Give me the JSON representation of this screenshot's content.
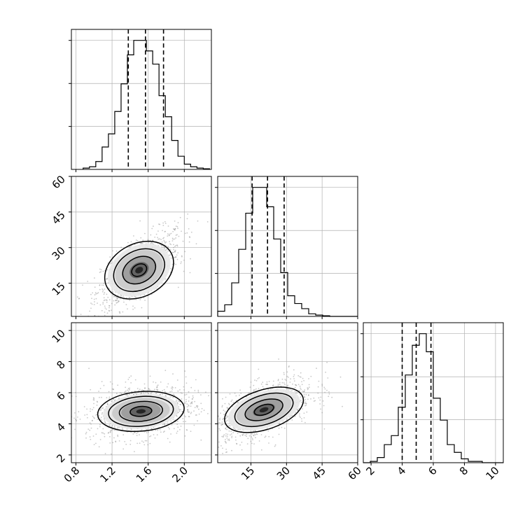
{
  "chart_data": {
    "type": "corner",
    "title": "",
    "params": [
      {
        "name": "",
        "range": [
          0.75,
          2.3
        ],
        "ticks": [
          0.8,
          1.2,
          1.6,
          2.0
        ],
        "tick_labels": [
          "0.8",
          "1.2",
          "1.6",
          "2.0"
        ],
        "quantiles": [
          1.38,
          1.57,
          1.77
        ]
      },
      {
        "name": "",
        "range": [
          1,
          60
        ],
        "ticks": [
          15,
          30,
          45,
          60
        ],
        "tick_labels": [
          "15",
          "30",
          "45",
          "60"
        ],
        "quantiles": [
          15.5,
          22.0,
          29.0
        ]
      },
      {
        "name": "",
        "range": [
          1.5,
          10.5
        ],
        "ticks": [
          2,
          4,
          6,
          8,
          10
        ],
        "tick_labels": [
          "2",
          "4",
          "6",
          "8",
          "10"
        ],
        "quantiles": [
          4.0,
          4.9,
          5.85
        ]
      }
    ],
    "marginals": [
      {
        "param": 0,
        "bin_edges": [
          0.88,
          0.95,
          1.02,
          1.09,
          1.16,
          1.23,
          1.3,
          1.37,
          1.44,
          1.51,
          1.58,
          1.65,
          1.72,
          1.79,
          1.86,
          1.93,
          2.0,
          2.07,
          2.14,
          2.21,
          2.28
        ],
        "counts": [
          1,
          2,
          6,
          17,
          27,
          44,
          65,
          87,
          98,
          98,
          90,
          80,
          56,
          40,
          22,
          10,
          4,
          2,
          1,
          0.5
        ]
      },
      {
        "param": 1,
        "bin_edges": [
          1,
          3.95,
          6.9,
          9.85,
          12.8,
          15.75,
          18.7,
          21.65,
          24.6,
          27.55,
          30.5,
          33.45,
          36.4,
          39.35,
          42.3,
          45.25,
          48.2,
          51.15,
          54.1,
          57.05,
          60
        ],
        "counts": [
          4,
          9,
          26,
          52,
          80,
          100,
          100,
          85,
          60,
          34,
          16,
          10,
          6,
          2,
          1,
          0.5,
          0,
          0,
          0,
          0
        ]
      },
      {
        "param": 2,
        "bin_edges": [
          1.5,
          1.95,
          2.4,
          2.85,
          3.3,
          3.75,
          4.2,
          4.65,
          5.1,
          5.55,
          6.0,
          6.45,
          6.9,
          7.35,
          7.8,
          8.25,
          8.7,
          9.15,
          9.6,
          10.05,
          10.5
        ],
        "counts": [
          0,
          1,
          4,
          14,
          21,
          43,
          68,
          91,
          100,
          86,
          50,
          33,
          14,
          8,
          3,
          1,
          1,
          0,
          0,
          0
        ]
      }
    ],
    "pairs": [
      {
        "x_param": 0,
        "y_param": 1,
        "center": [
          1.5,
          20.5
        ],
        "spread": [
          0.35,
          10.5
        ],
        "tilt_deg": 28,
        "contour_levels": [
          0.25,
          0.55,
          0.85,
          1.15
        ]
      },
      {
        "x_param": 0,
        "y_param": 2,
        "center": [
          1.52,
          4.8
        ],
        "spread": [
          0.4,
          1.15
        ],
        "tilt_deg": 5,
        "contour_levels": [
          0.3,
          0.6,
          0.9,
          1.2
        ]
      },
      {
        "x_param": 1,
        "y_param": 2,
        "center": [
          20.5,
          4.9
        ],
        "spread": [
          15,
          1.2
        ],
        "tilt_deg": 18,
        "contour_levels": [
          0.28,
          0.55,
          0.85,
          1.15
        ]
      }
    ],
    "grid": true,
    "colors": {
      "line": "#000000",
      "grid": "#b0b0b0",
      "points": "#888888",
      "quantile": "#000000"
    }
  }
}
